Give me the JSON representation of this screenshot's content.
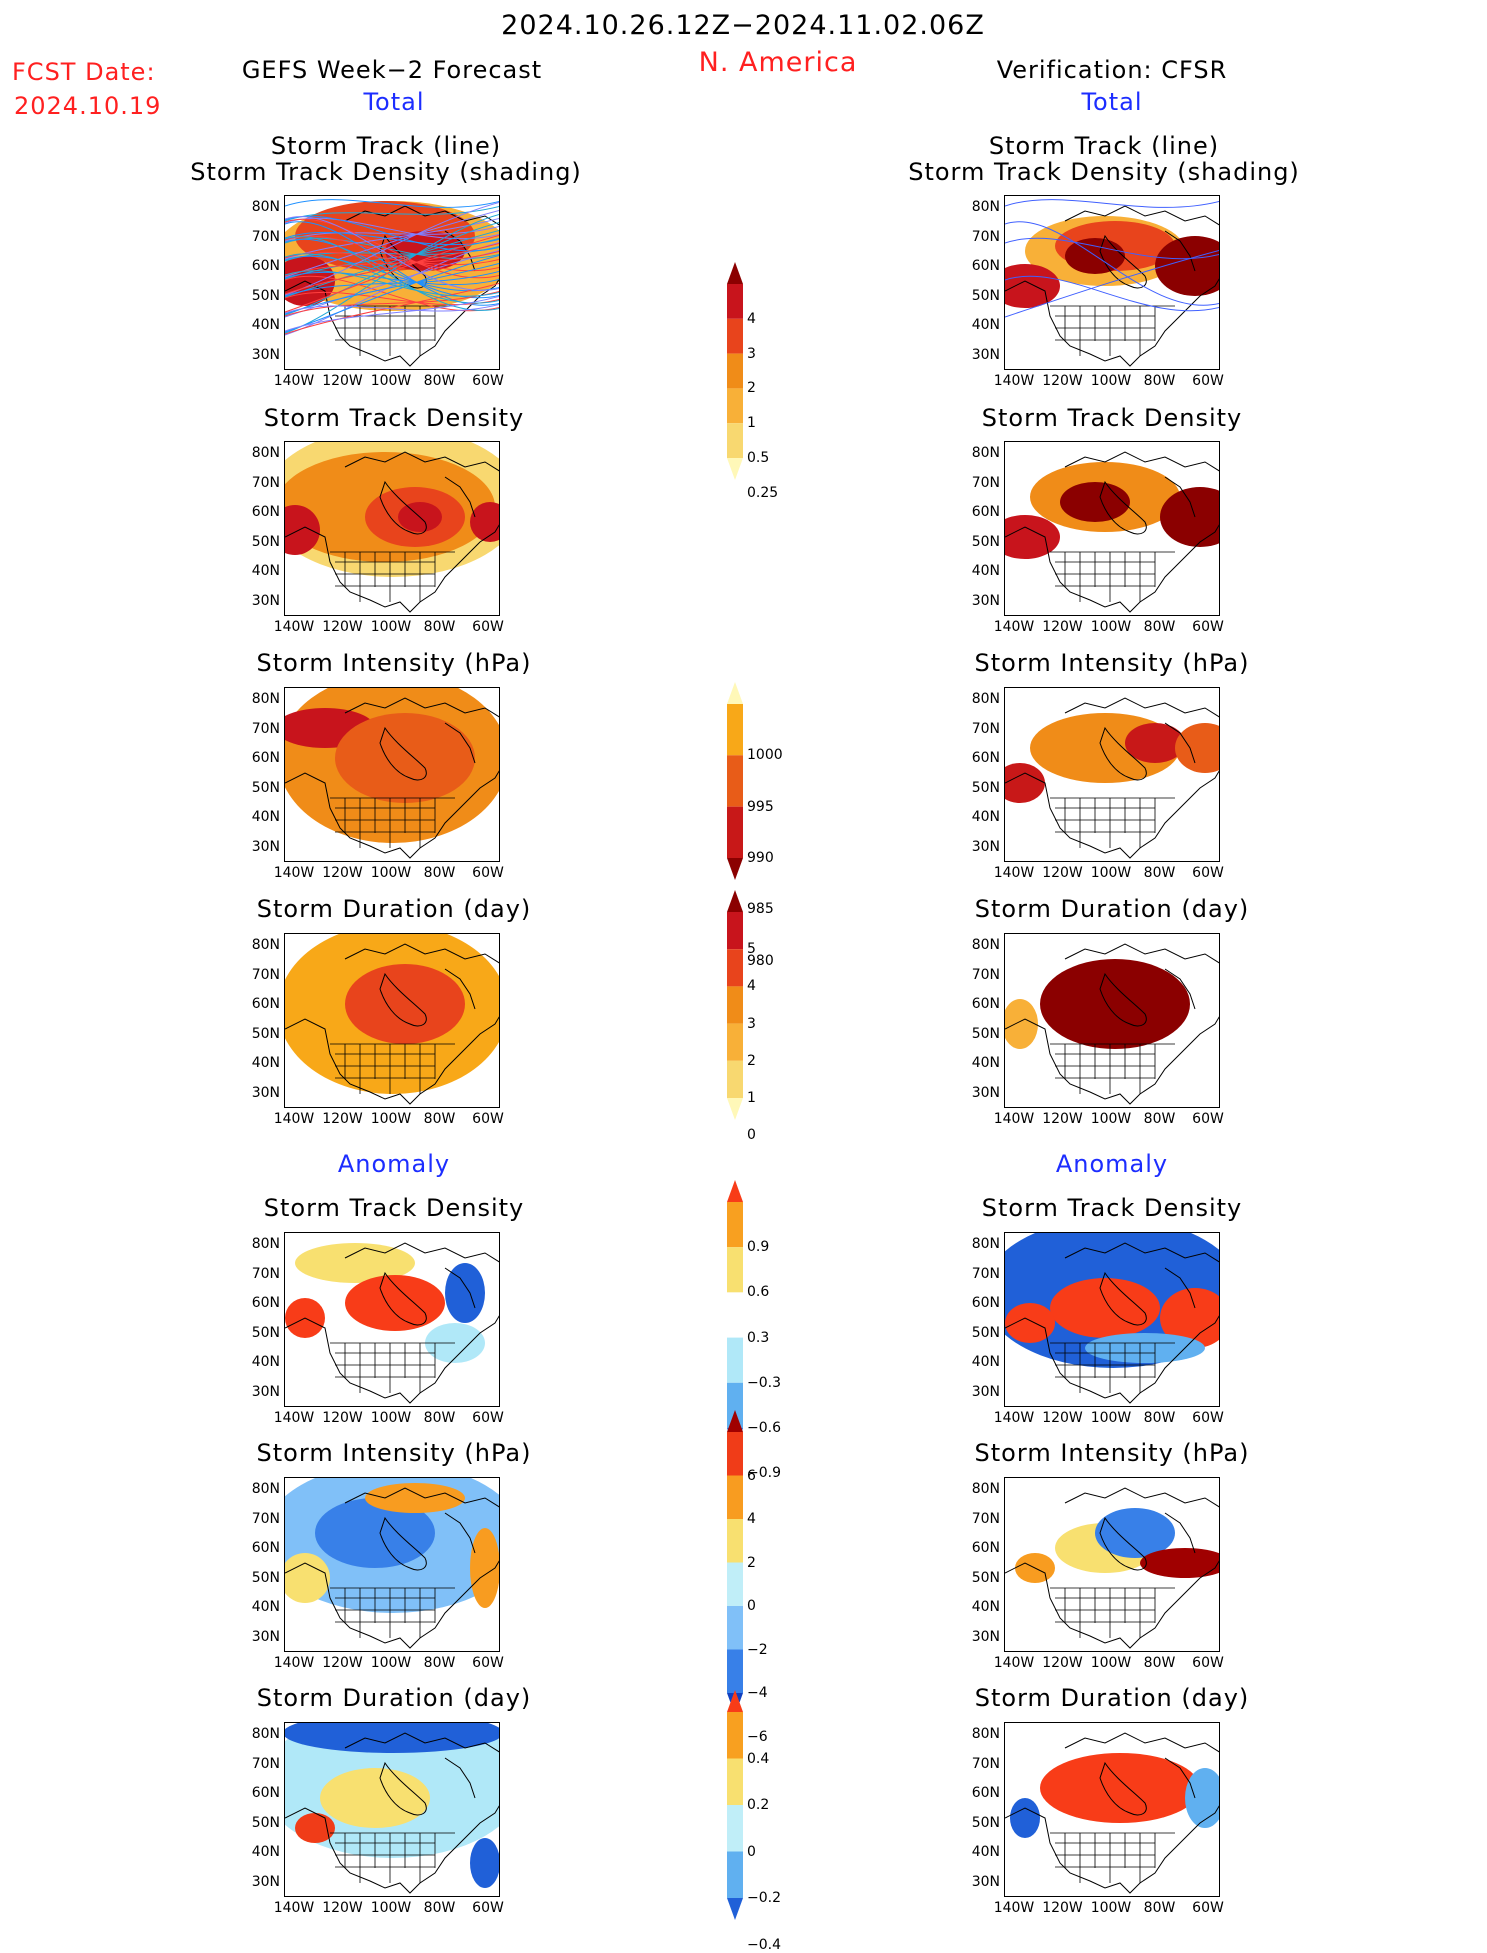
{
  "header": {
    "date_range": "2024.10.26.12Z−2024.11.02.06Z",
    "region": "N. America",
    "fcst_label": "FCST Date:",
    "fcst_date": "2024.10.19",
    "left_title": "GEFS Week−2 Forecast",
    "right_title": "Verification: CFSR",
    "section_total": "Total",
    "section_anomaly": "Anomaly"
  },
  "panel_titles": {
    "track_line": "Storm Track (line)",
    "track_shading": "Storm Track Density (shading)",
    "density": "Storm Track Density",
    "intensity": "Storm Intensity (hPa)",
    "duration": "Storm Duration (day)"
  },
  "axes": {
    "lat_labels": [
      "80N",
      "70N",
      "60N",
      "50N",
      "40N",
      "30N"
    ],
    "lon_labels": [
      "140W",
      "120W",
      "100W",
      "80W",
      "60W"
    ]
  },
  "colorbars": {
    "density_total": {
      "labels": [
        "4",
        "3",
        "2",
        "1",
        "0.5",
        "0.25"
      ],
      "colors": [
        "#8b0000",
        "#c8141c",
        "#e8441c",
        "#f08c18",
        "#f8b038",
        "#f8d870",
        "#fff8b8"
      ]
    },
    "intensity_total": {
      "labels": [
        "1000",
        "995",
        "990",
        "985",
        "980"
      ],
      "colors": [
        "#fff8b8",
        "#f8a818",
        "#e85c18",
        "#c81818",
        "#8b0000"
      ]
    },
    "duration_total": {
      "labels": [
        "5",
        "4",
        "3",
        "2",
        "1",
        "0"
      ],
      "colors": [
        "#8b0000",
        "#c8141c",
        "#e8441c",
        "#f08c18",
        "#f8b038",
        "#f8d870",
        "#fff8b8"
      ]
    },
    "density_anom": {
      "labels": [
        "0.9",
        "0.6",
        "0.3",
        "−0.3",
        "−0.6",
        "−0.9"
      ],
      "colors": [
        "#f83c18",
        "#f8a020",
        "#f8e070",
        "#ffffff",
        "#b0e8f8",
        "#60b0f0",
        "#2060d8"
      ]
    },
    "intensity_anom": {
      "labels": [
        "6",
        "4",
        "2",
        "0",
        "−2",
        "−4",
        "−6"
      ],
      "colors": [
        "#a00000",
        "#f03c18",
        "#f89c20",
        "#f8e070",
        "#c0eef8",
        "#80c0f8",
        "#3880e8",
        "#1040c0"
      ]
    },
    "duration_anom": {
      "labels": [
        "0.4",
        "0.2",
        "0",
        "−0.2",
        "−0.4"
      ],
      "colors": [
        "#f83c18",
        "#f8a020",
        "#f8e070",
        "#c0eef8",
        "#60b0f0",
        "#2060d8"
      ]
    }
  }
}
